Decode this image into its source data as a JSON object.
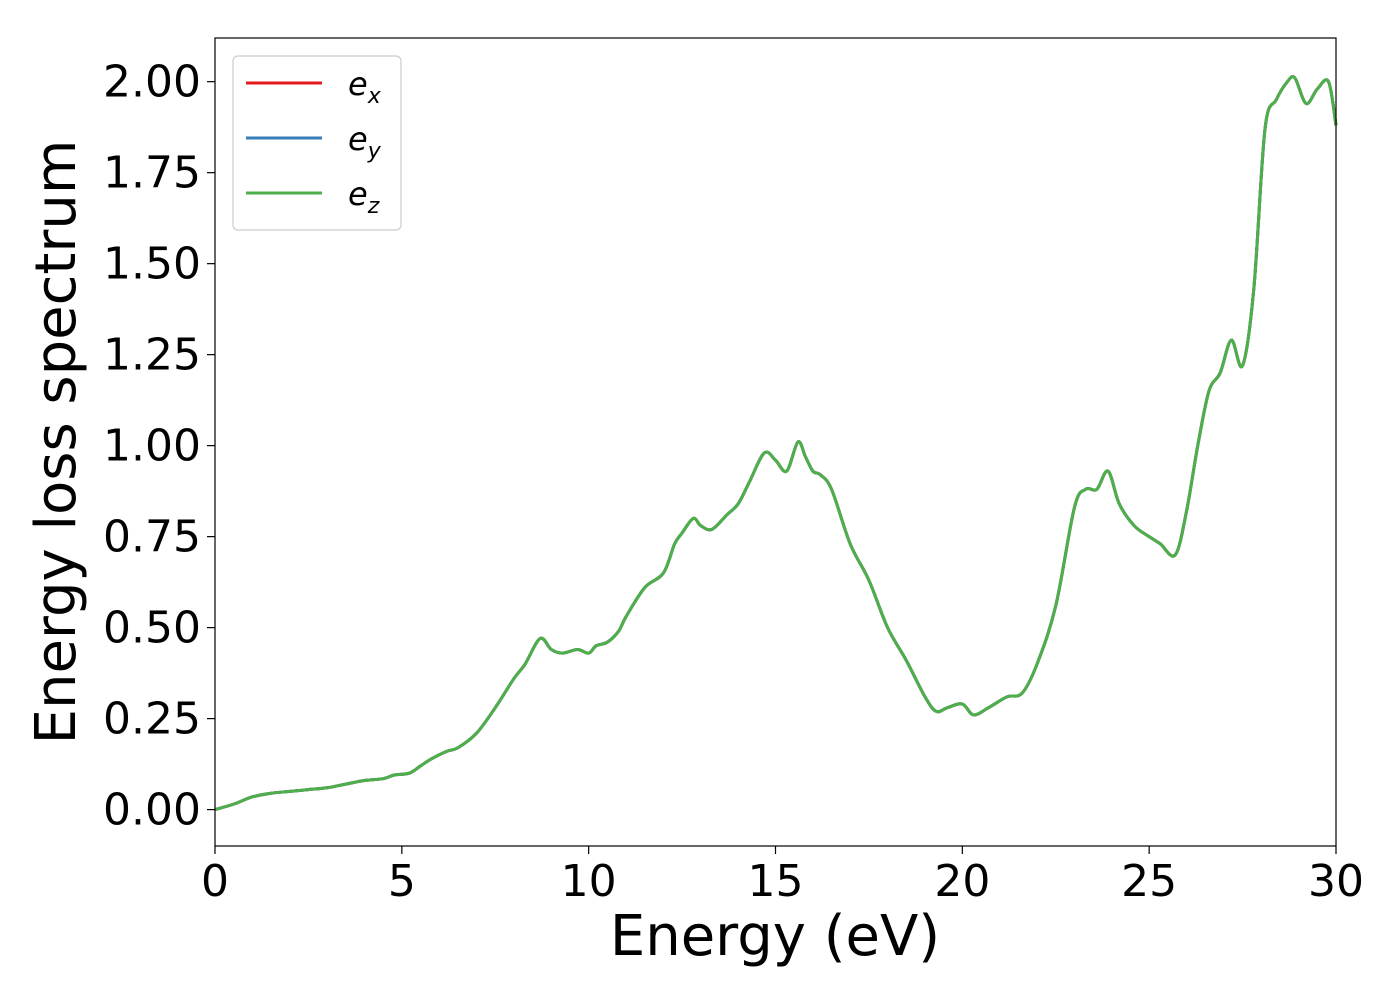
{
  "chart_data": {
    "type": "line",
    "title": "",
    "xlabel": "Energy (eV)",
    "ylabel": "Energy loss spectrum",
    "xlim": [
      0,
      30
    ],
    "ylim": [
      -0.1,
      2.12
    ],
    "xticks": [
      0,
      5,
      10,
      15,
      20,
      25,
      30
    ],
    "xtick_labels": [
      "0",
      "5",
      "10",
      "15",
      "20",
      "25",
      "30"
    ],
    "yticks": [
      0.0,
      0.25,
      0.5,
      0.75,
      1.0,
      1.25,
      1.5,
      1.75,
      2.0
    ],
    "ytick_labels": [
      "0.00",
      "0.25",
      "0.50",
      "0.75",
      "1.00",
      "1.25",
      "1.50",
      "1.75",
      "2.00"
    ],
    "grid": false,
    "legend_position": "top-left",
    "x": [
      0,
      0.5,
      1,
      1.5,
      2,
      2.5,
      3,
      3.5,
      4,
      4.5,
      4.8,
      5.2,
      5.5,
      5.8,
      6.2,
      6.5,
      7,
      7.5,
      8,
      8.3,
      8.7,
      9,
      9.3,
      9.7,
      10,
      10.2,
      10.5,
      10.8,
      11,
      11.5,
      12,
      12.3,
      12.5,
      12.8,
      13,
      13.3,
      13.7,
      14,
      14.3,
      14.7,
      15,
      15.3,
      15.6,
      15.8,
      16,
      16.2,
      16.5,
      17,
      17.5,
      18,
      18.5,
      19,
      19.3,
      19.6,
      20,
      20.3,
      20.7,
      21.2,
      21.6,
      22,
      22.5,
      23,
      23.3,
      23.6,
      23.9,
      24.2,
      24.6,
      25,
      25.3,
      25.7,
      26,
      26.3,
      26.6,
      26.9,
      27.2,
      27.5,
      27.8,
      28.1,
      28.4,
      28.7,
      28.9,
      29.2,
      29.5,
      29.8,
      30
    ],
    "series": [
      {
        "name": "e_x",
        "color": "#e41a1c",
        "values": [
          0.0,
          0.015,
          0.035,
          0.045,
          0.05,
          0.055,
          0.06,
          0.07,
          0.08,
          0.085,
          0.095,
          0.1,
          0.12,
          0.14,
          0.16,
          0.17,
          0.21,
          0.28,
          0.36,
          0.4,
          0.47,
          0.44,
          0.43,
          0.44,
          0.43,
          0.45,
          0.46,
          0.49,
          0.53,
          0.61,
          0.65,
          0.73,
          0.76,
          0.8,
          0.78,
          0.77,
          0.81,
          0.84,
          0.9,
          0.98,
          0.96,
          0.93,
          1.01,
          0.97,
          0.93,
          0.92,
          0.88,
          0.73,
          0.63,
          0.5,
          0.41,
          0.31,
          0.27,
          0.28,
          0.29,
          0.26,
          0.28,
          0.31,
          0.32,
          0.4,
          0.56,
          0.83,
          0.88,
          0.88,
          0.93,
          0.84,
          0.78,
          0.75,
          0.73,
          0.7,
          0.82,
          1.0,
          1.15,
          1.2,
          1.29,
          1.22,
          1.43,
          1.87,
          1.95,
          2.0,
          2.01,
          1.94,
          1.98,
          2.0,
          1.88
        ]
      },
      {
        "name": "e_y",
        "color": "#377eb8",
        "values": [
          0.0,
          0.015,
          0.035,
          0.045,
          0.05,
          0.055,
          0.06,
          0.07,
          0.08,
          0.085,
          0.095,
          0.1,
          0.12,
          0.14,
          0.16,
          0.17,
          0.21,
          0.28,
          0.36,
          0.4,
          0.47,
          0.44,
          0.43,
          0.44,
          0.43,
          0.45,
          0.46,
          0.49,
          0.53,
          0.61,
          0.65,
          0.73,
          0.76,
          0.8,
          0.78,
          0.77,
          0.81,
          0.84,
          0.9,
          0.98,
          0.96,
          0.93,
          1.01,
          0.97,
          0.93,
          0.92,
          0.88,
          0.73,
          0.63,
          0.5,
          0.41,
          0.31,
          0.27,
          0.28,
          0.29,
          0.26,
          0.28,
          0.31,
          0.32,
          0.4,
          0.56,
          0.83,
          0.88,
          0.88,
          0.93,
          0.84,
          0.78,
          0.75,
          0.73,
          0.7,
          0.82,
          1.0,
          1.15,
          1.2,
          1.29,
          1.22,
          1.43,
          1.87,
          1.95,
          2.0,
          2.01,
          1.94,
          1.98,
          2.0,
          1.88
        ]
      },
      {
        "name": "e_z",
        "color": "#4daf4a",
        "values": [
          0.0,
          0.015,
          0.035,
          0.045,
          0.05,
          0.055,
          0.06,
          0.07,
          0.08,
          0.085,
          0.095,
          0.1,
          0.12,
          0.14,
          0.16,
          0.17,
          0.21,
          0.28,
          0.36,
          0.4,
          0.47,
          0.44,
          0.43,
          0.44,
          0.43,
          0.45,
          0.46,
          0.49,
          0.53,
          0.61,
          0.65,
          0.73,
          0.76,
          0.8,
          0.78,
          0.77,
          0.81,
          0.84,
          0.9,
          0.98,
          0.96,
          0.93,
          1.01,
          0.97,
          0.93,
          0.92,
          0.88,
          0.73,
          0.63,
          0.5,
          0.41,
          0.31,
          0.27,
          0.28,
          0.29,
          0.26,
          0.28,
          0.31,
          0.32,
          0.4,
          0.56,
          0.83,
          0.88,
          0.88,
          0.93,
          0.84,
          0.78,
          0.75,
          0.73,
          0.7,
          0.82,
          1.0,
          1.15,
          1.2,
          1.29,
          1.22,
          1.43,
          1.87,
          1.95,
          2.0,
          2.01,
          1.94,
          1.98,
          2.0,
          1.88
        ]
      }
    ],
    "legend": [
      {
        "base": "e",
        "sub": "x",
        "color": "#e41a1c"
      },
      {
        "base": "e",
        "sub": "y",
        "color": "#377eb8"
      },
      {
        "base": "e",
        "sub": "z",
        "color": "#4daf4a"
      }
    ]
  }
}
